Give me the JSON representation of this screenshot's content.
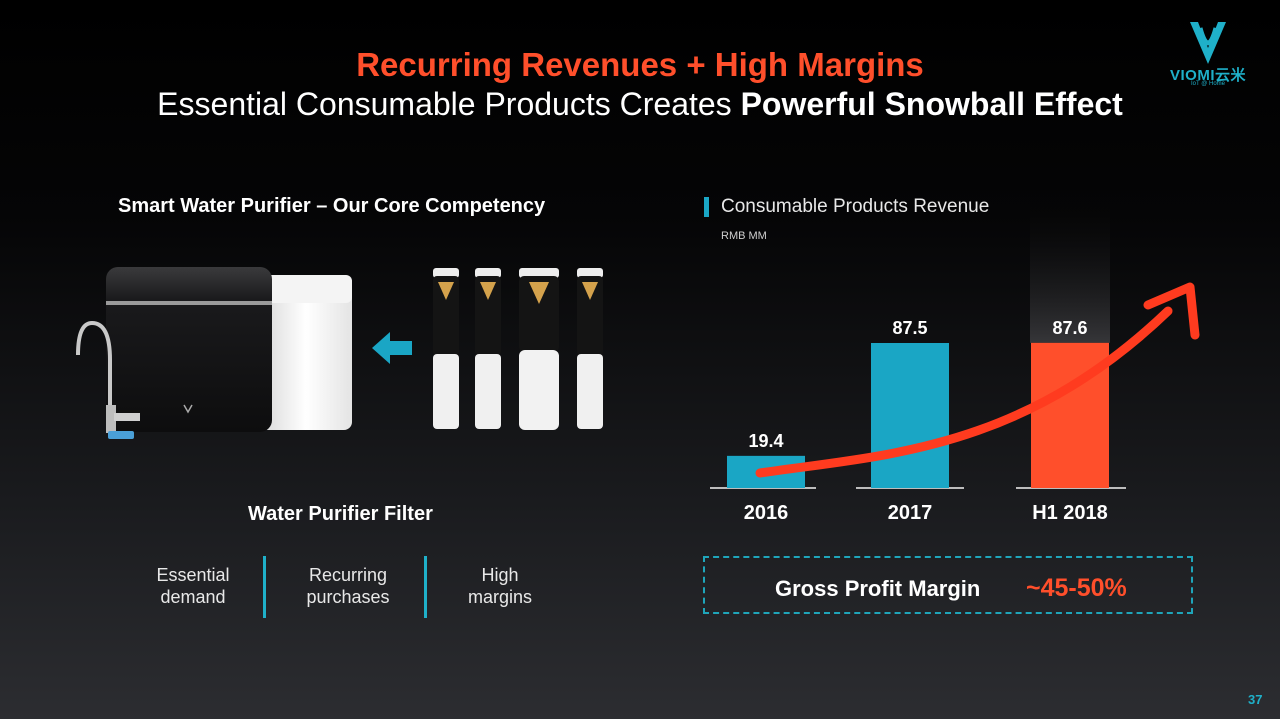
{
  "header": {
    "title": "Recurring Revenues + High Margins",
    "subtitle_plain": "Essential Consumable Products Creates ",
    "subtitle_bold": "Powerful Snowball Effect"
  },
  "logo": {
    "brand": "VIOMI云米",
    "tagline": "IoT @ Home"
  },
  "left_panel": {
    "heading": "Smart Water Purifier – Our Core Competency",
    "filter_label": "Water Purifier Filter",
    "features": [
      {
        "line1": "Essential",
        "line2": "demand"
      },
      {
        "line1": "Recurring",
        "line2": "purchases"
      },
      {
        "line1": "High",
        "line2": "margins"
      }
    ]
  },
  "chart_data": {
    "type": "bar",
    "title": "Consumable Products Revenue",
    "unit_label": "RMB MM",
    "categories": [
      "2016",
      "2017",
      "H1 2018"
    ],
    "values": [
      19.4,
      87.5,
      87.6
    ],
    "data_labels": [
      "19.4",
      "87.5",
      "87.6"
    ],
    "colors": [
      "#1aa6c5",
      "#1aa6c5",
      "#ff4f2b"
    ],
    "ylim": [
      0,
      100
    ],
    "grid": false,
    "legend": false
  },
  "gross_margin": {
    "label": "Gross Profit Margin",
    "value": "~45-50%"
  },
  "footer": {
    "page_number": "37"
  },
  "colors": {
    "accent": "#1fb0c9",
    "highlight": "#ff4f2b"
  }
}
